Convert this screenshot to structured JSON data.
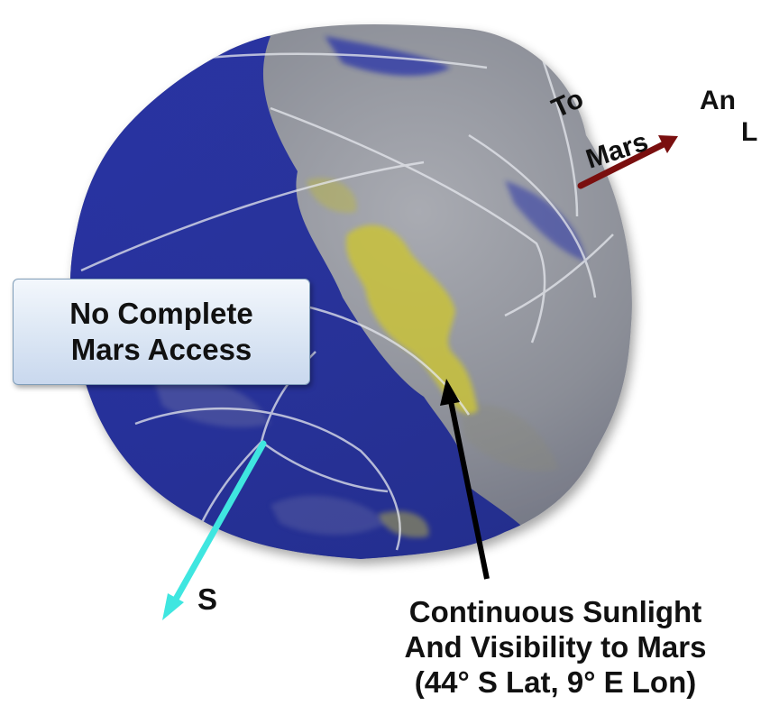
{
  "callout_no_access": {
    "line1": "No Complete",
    "line2": "Mars Access"
  },
  "callout_sunlight": {
    "line1": "Continuous Sunlight",
    "line2": "And Visibility to Mars",
    "line3": "(44° S Lat, 9° E Lon)"
  },
  "to_mars": {
    "word1": "To",
    "word2": "Mars"
  },
  "south_axis_label": "S",
  "partial_right_label": {
    "line1": "An",
    "line2": "L"
  },
  "colors": {
    "no_access_region": "#2b2f9e",
    "surface_gray": "#8a8d96",
    "sunlit_visible_region": "#c9c23a",
    "mars_arrow": "#7a0f0f",
    "south_arrow": "#3fe6e0",
    "pointer_arrow": "#000000"
  }
}
